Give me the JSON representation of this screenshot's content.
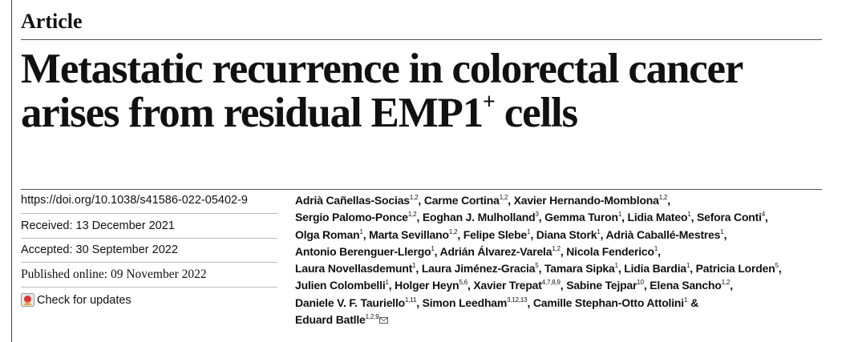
{
  "header": {
    "section": "Article",
    "title": {
      "line1": "Metastatic recurrence in colorectal cancer",
      "line2": "arises from residual EMP1",
      "line2_superscript": "+",
      "line2_end": "cells"
    }
  },
  "metadata": {
    "doi": "https://doi.org/10.1038/s41586-022-05402-9",
    "received": "Received: 13 December 2021",
    "accepted": "Accepted: 30 September 2022",
    "published": "Published online: 09 November 2022",
    "check_updates": "Check for updates"
  },
  "authors": [
    [
      {
        "name": "Adrià Cañellas-Socias",
        "affiliations": "1,2",
        "separator": ","
      },
      {
        "name": "Carme Cortina",
        "affiliations": "1,2",
        "separator": ","
      },
      {
        "name": "Xavier Hernando-Momblona",
        "affiliations": "1,2",
        "separator": ","
      }
    ],
    [
      {
        "name": "Sergio Palomo-Ponce",
        "affiliations": "1,2",
        "separator": ","
      },
      {
        "name": "Eoghan J. Mulholland",
        "affiliations": "3",
        "separator": ","
      },
      {
        "name": "Gemma Turon",
        "affiliations": "1",
        "separator": ","
      },
      {
        "name": "Lidia Mateo",
        "affiliations": "1",
        "separator": ","
      },
      {
        "name": "Sefora Conti",
        "affiliations": "4",
        "separator": ","
      }
    ],
    [
      {
        "name": "Olga Roman",
        "affiliations": "1",
        "separator": ","
      },
      {
        "name": "Marta Sevillano",
        "affiliations": "1,2",
        "separator": ","
      },
      {
        "name": "Felipe Slebe",
        "affiliations": "1",
        "separator": ","
      },
      {
        "name": "Diana Stork",
        "affiliations": "1",
        "separator": ","
      },
      {
        "name": "Adrià Caballé-Mestres",
        "affiliations": "1",
        "separator": ","
      }
    ],
    [
      {
        "name": "Antonio Berenguer-Llergo",
        "affiliations": "1",
        "separator": ","
      },
      {
        "name": "Adrián Álvarez-Varela",
        "affiliations": "1,2",
        "separator": ","
      },
      {
        "name": "Nicola Fenderico",
        "affiliations": "1",
        "separator": ","
      }
    ],
    [
      {
        "name": "Laura Novellasdemunt",
        "affiliations": "1",
        "separator": ","
      },
      {
        "name": "Laura Jiménez-Gracia",
        "affiliations": "5",
        "separator": ","
      },
      {
        "name": "Tamara Sipka",
        "affiliations": "1",
        "separator": ","
      },
      {
        "name": "Lidia Bardia",
        "affiliations": "1",
        "separator": ","
      },
      {
        "name": "Patricia Lorden",
        "affiliations": "5",
        "separator": ","
      }
    ],
    [
      {
        "name": "Julien Colombelli",
        "affiliations": "1",
        "separator": ","
      },
      {
        "name": "Holger Heyn",
        "affiliations": "5,6",
        "separator": ","
      },
      {
        "name": "Xavier Trepat",
        "affiliations": "4,7,8,9",
        "separator": ","
      },
      {
        "name": "Sabine Tejpar",
        "affiliations": "10",
        "separator": ","
      },
      {
        "name": "Elena Sancho",
        "affiliations": "1,2",
        "separator": ","
      }
    ],
    [
      {
        "name": "Daniele V. F. Tauriello",
        "affiliations": "1,11",
        "separator": ","
      },
      {
        "name": "Simon Leedham",
        "affiliations": "3,12,13",
        "separator": ","
      },
      {
        "name": "Camille Stephan-Otto Attolini",
        "affiliations": "1",
        "separator": "&"
      }
    ],
    [
      {
        "name": "Eduard Batlle",
        "affiliations": "1,2,9"
      }
    ]
  ]
}
